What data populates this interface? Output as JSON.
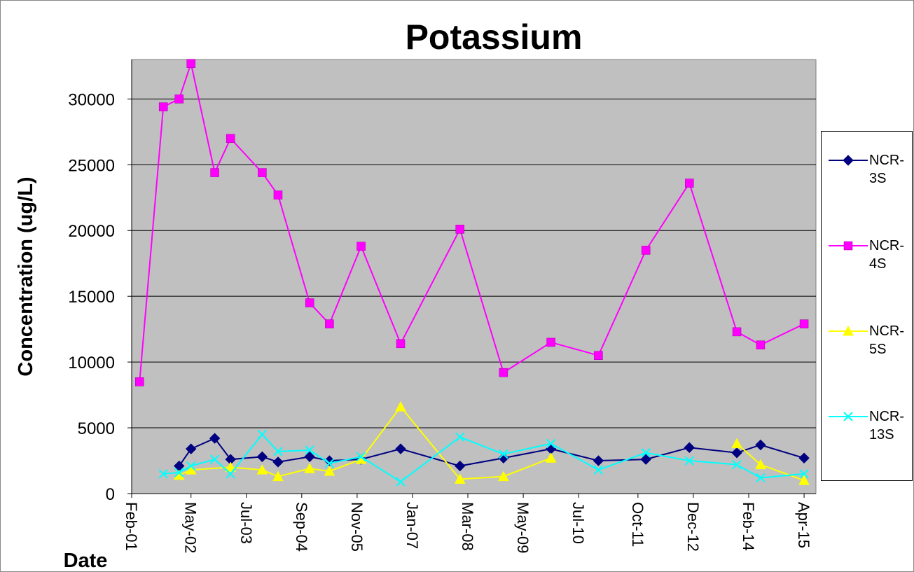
{
  "chart_data": {
    "type": "line",
    "title": "Potassium",
    "x_label": "Date",
    "y_label": "Concentration (ug/L)",
    "xlim": [
      "2001-02",
      "2015-07"
    ],
    "xticks": [
      {
        "value": "2001-02",
        "label": "Feb-01"
      },
      {
        "value": "2002-05",
        "label": "May-02"
      },
      {
        "value": "2003-07",
        "label": "Jul-03"
      },
      {
        "value": "2004-09",
        "label": "Sep-04"
      },
      {
        "value": "2005-11",
        "label": "Nov-05"
      },
      {
        "value": "2007-01",
        "label": "Jan-07"
      },
      {
        "value": "2008-03",
        "label": "Mar-08"
      },
      {
        "value": "2009-05",
        "label": "May-09"
      },
      {
        "value": "2010-07",
        "label": "Jul-10"
      },
      {
        "value": "2011-10",
        "label": "Oct-11"
      },
      {
        "value": "2012-12",
        "label": "Dec-12"
      },
      {
        "value": "2014-02",
        "label": "Feb-14"
      },
      {
        "value": "2015-04",
        "label": "Apr-15"
      }
    ],
    "ylim": [
      0,
      33000
    ],
    "yticks": [
      0,
      5000,
      10000,
      15000,
      20000,
      25000,
      30000
    ],
    "grid": true,
    "background": "#c0c0c0",
    "legend": "right",
    "series": [
      {
        "name": "NCR-3S",
        "color": "#000080",
        "marker": "diamond",
        "x": [
          "2002-02",
          "2002-05",
          "2002-11",
          "2003-03",
          "2003-11",
          "2004-03",
          "2004-11",
          "2005-04",
          "2005-12",
          "2006-10",
          "2008-01",
          "2008-12",
          "2009-12",
          "2010-12",
          "2011-12",
          "2012-11",
          "2013-11",
          "2014-05",
          "2015-04"
        ],
        "values": [
          2100,
          3400,
          4200,
          2600,
          2800,
          2400,
          2800,
          2500,
          2600,
          3400,
          2100,
          2700,
          3400,
          2500,
          2600,
          3500,
          3100,
          3700,
          2700
        ]
      },
      {
        "name": "NCR-4S",
        "color": "#ff00ff",
        "marker": "square",
        "x": [
          "2001-04",
          "2001-10",
          "2002-02",
          "2002-05",
          "2002-11",
          "2003-03",
          "2003-11",
          "2004-03",
          "2004-11",
          "2005-04",
          "2005-12",
          "2006-10",
          "2008-01",
          "2008-12",
          "2009-12",
          "2010-12",
          "2011-12",
          "2012-11",
          "2013-11",
          "2014-05",
          "2015-04"
        ],
        "values": [
          8500,
          29400,
          30000,
          32700,
          24400,
          27000,
          24400,
          22700,
          14500,
          12900,
          18800,
          11400,
          20100,
          9200,
          11500,
          10500,
          18500,
          23600,
          12300,
          11300,
          12900
        ]
      },
      {
        "name": "NCR-5S",
        "color": "#ffff00",
        "marker": "triangle",
        "x": [
          "2002-02",
          "2002-05",
          "2003-03",
          "2003-11",
          "2004-03",
          "2004-11",
          "2005-04",
          "2005-12",
          "2006-10",
          "2008-01",
          "2008-12",
          "2009-12",
          "2010-12",
          "2013-11",
          "2014-05",
          "2015-04"
        ],
        "values": [
          1400,
          1800,
          2000,
          1800,
          1300,
          1900,
          1700,
          2600,
          6600,
          1100,
          1300,
          2700,
          null,
          3800,
          2200,
          1000
        ]
      },
      {
        "name": "NCR-13S",
        "color": "#00ffff",
        "marker": "x",
        "x": [
          "2001-10",
          "2002-02",
          "2002-05",
          "2002-11",
          "2003-03",
          "2003-11",
          "2004-03",
          "2004-11",
          "2005-04",
          "2005-12",
          "2006-10",
          "2008-01",
          "2008-12",
          "2009-12",
          "2010-12",
          "2011-12",
          "2012-11",
          "2013-11",
          "2014-05",
          "2015-04"
        ],
        "values": [
          1500,
          1600,
          2100,
          2600,
          1500,
          4500,
          3200,
          3300,
          2300,
          2800,
          900,
          4300,
          3000,
          3800,
          1800,
          3100,
          2500,
          2200,
          1200,
          1500
        ]
      }
    ]
  }
}
